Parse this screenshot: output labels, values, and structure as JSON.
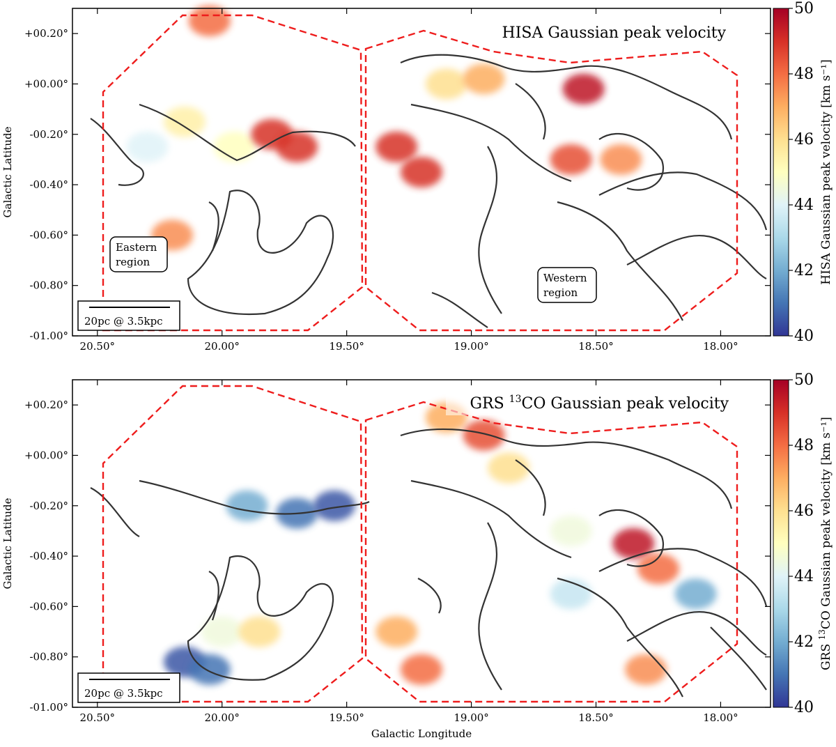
{
  "chart_data": [
    {
      "type": "heatmap",
      "title": "HISA Gaussian peak velocity",
      "ylabel": "Galactic Latitude",
      "xlabel": "",
      "colorbar_label": "HISA Gaussian peak velocity [km s$^{-1}$]",
      "colorbar_label_text": "HISA Gaussian peak velocity [km s⁻¹]",
      "colorbar_ticks": [
        "40",
        "42",
        "44",
        "46",
        "48",
        "50"
      ],
      "colorbar_range": [
        40,
        50
      ],
      "colormap": "RdYlBu_r",
      "xlim": [
        20.6,
        17.8
      ],
      "ylim": [
        -1.0,
        0.3
      ],
      "x_ticks": [
        20.5,
        20.0,
        19.5,
        19.0,
        18.5,
        18.0
      ],
      "x_tick_labels": [
        "20.50°",
        "20.00°",
        "19.50°",
        "19.00°",
        "18.50°",
        "18.00°"
      ],
      "y_ticks": [
        0.2,
        0.0,
        -0.2,
        -0.4,
        -0.6,
        -0.8,
        -1.0
      ],
      "y_tick_labels": [
        "+00.20°",
        "+00.00°",
        "-00.20°",
        "-00.40°",
        "-00.60°",
        "-00.80°",
        "-01.00°"
      ],
      "annotations": [
        "Eastern\nregion",
        "Western\nregion",
        "20pc @ 3.5kpc"
      ],
      "region_outlines": {
        "eastern": [
          [
            20.5,
            0.02
          ],
          [
            20.3,
            0.18
          ],
          [
            20.15,
            0.28
          ],
          [
            19.9,
            0.28
          ],
          [
            19.6,
            0.25
          ],
          [
            19.57,
            -0.8
          ],
          [
            19.65,
            -0.98
          ],
          [
            20.5,
            -0.98
          ]
        ],
        "western": [
          [
            19.55,
            0.22
          ],
          [
            19.25,
            0.27
          ],
          [
            18.9,
            0.23
          ],
          [
            18.6,
            0.2
          ],
          [
            18.1,
            0.22
          ],
          [
            18.05,
            0.1
          ],
          [
            18.05,
            -0.8
          ],
          [
            18.2,
            -0.98
          ],
          [
            19.0,
            -0.98
          ],
          [
            19.45,
            -0.9
          ],
          [
            19.55,
            -0.75
          ]
        ]
      },
      "features": [
        {
          "l": 20.05,
          "b": 0.25,
          "v": 48
        },
        {
          "l": 20.3,
          "b": -0.25,
          "v": 44
        },
        {
          "l": 20.15,
          "b": -0.15,
          "v": 45.5
        },
        {
          "l": 19.95,
          "b": -0.25,
          "v": 45
        },
        {
          "l": 19.8,
          "b": -0.2,
          "v": 49
        },
        {
          "l": 19.7,
          "b": -0.25,
          "v": 49
        },
        {
          "l": 20.2,
          "b": -0.6,
          "v": 47.5
        },
        {
          "l": 19.1,
          "b": 0.0,
          "v": 46
        },
        {
          "l": 18.95,
          "b": 0.02,
          "v": 47
        },
        {
          "l": 18.55,
          "b": -0.02,
          "v": 49.5
        },
        {
          "l": 18.4,
          "b": -0.3,
          "v": 47.5
        },
        {
          "l": 18.6,
          "b": -0.3,
          "v": 48.5
        },
        {
          "l": 19.3,
          "b": -0.25,
          "v": 49
        },
        {
          "l": 19.2,
          "b": -0.35,
          "v": 49
        }
      ]
    },
    {
      "type": "heatmap",
      "title": "GRS $^{13}$CO Gaussian peak velocity",
      "title_text_pre": "GRS ",
      "title_sup": "13",
      "title_text_post": "CO Gaussian peak velocity",
      "ylabel": "Galactic Latitude",
      "xlabel": "Galactic Longitude",
      "colorbar_label": "GRS $^{13}$CO Gaussian peak velocity [km s$^{-1}$]",
      "colorbar_label_pre": "GRS ",
      "colorbar_label_sup": "13",
      "colorbar_label_post": "CO Gaussian peak velocity [km s⁻¹]",
      "colorbar_ticks": [
        "40",
        "42",
        "44",
        "46",
        "48",
        "50"
      ],
      "colorbar_range": [
        40,
        50
      ],
      "colormap": "RdYlBu_r",
      "xlim": [
        20.6,
        17.8
      ],
      "ylim": [
        -1.0,
        0.3
      ],
      "x_ticks": [
        20.5,
        20.0,
        19.5,
        19.0,
        18.5,
        18.0
      ],
      "x_tick_labels": [
        "20.50°",
        "20.00°",
        "19.50°",
        "19.00°",
        "18.50°",
        "18.00°"
      ],
      "y_ticks": [
        0.2,
        0.0,
        -0.2,
        -0.4,
        -0.6,
        -0.8,
        -1.0
      ],
      "y_tick_labels": [
        "+00.20°",
        "+00.00°",
        "-00.20°",
        "-00.40°",
        "-00.60°",
        "-00.80°",
        "-01.00°"
      ],
      "annotations": [
        "20pc @ 3.5kpc"
      ],
      "features": [
        {
          "l": 19.9,
          "b": -0.2,
          "v": 42
        },
        {
          "l": 19.7,
          "b": -0.23,
          "v": 41
        },
        {
          "l": 19.55,
          "b": -0.2,
          "v": 40.5
        },
        {
          "l": 20.0,
          "b": -0.7,
          "v": 44.5
        },
        {
          "l": 19.85,
          "b": -0.7,
          "v": 46
        },
        {
          "l": 20.15,
          "b": -0.82,
          "v": 40.5
        },
        {
          "l": 20.05,
          "b": -0.85,
          "v": 41
        },
        {
          "l": 19.1,
          "b": 0.15,
          "v": 47
        },
        {
          "l": 18.95,
          "b": 0.08,
          "v": 48.5
        },
        {
          "l": 18.85,
          "b": -0.05,
          "v": 46
        },
        {
          "l": 18.6,
          "b": -0.3,
          "v": 44.5
        },
        {
          "l": 18.35,
          "b": -0.35,
          "v": 49.5
        },
        {
          "l": 18.25,
          "b": -0.45,
          "v": 48
        },
        {
          "l": 18.6,
          "b": -0.55,
          "v": 43.5
        },
        {
          "l": 18.3,
          "b": -0.85,
          "v": 47.5
        },
        {
          "l": 18.1,
          "b": -0.55,
          "v": 42
        },
        {
          "l": 19.3,
          "b": -0.7,
          "v": 47
        },
        {
          "l": 19.2,
          "b": -0.85,
          "v": 48
        }
      ]
    }
  ]
}
